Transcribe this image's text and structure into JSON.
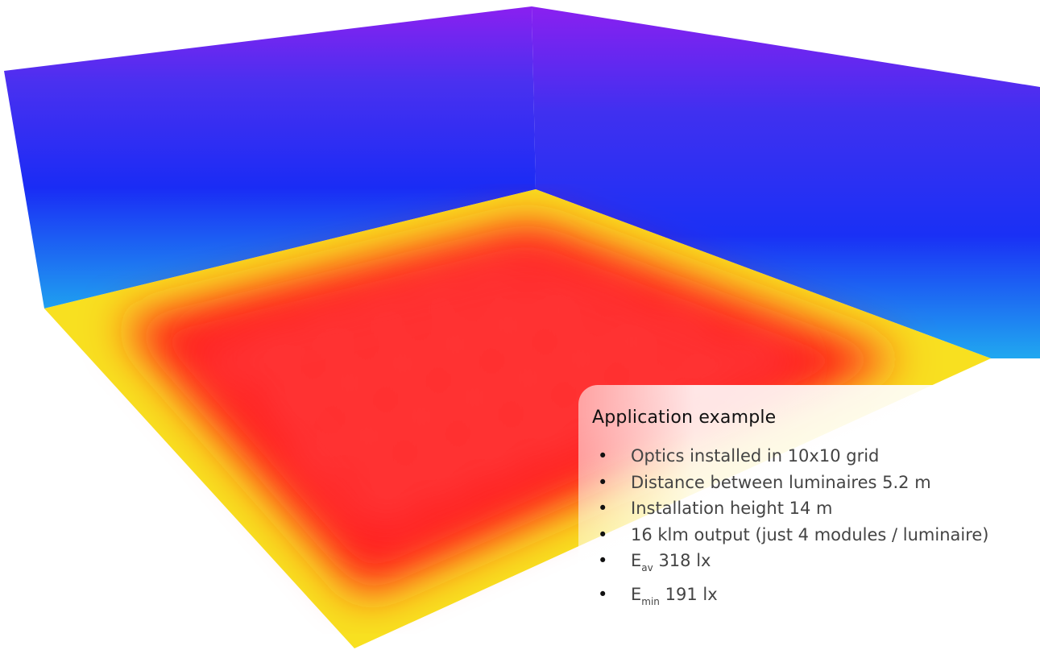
{
  "panel": {
    "title": "Application example",
    "items": [
      {
        "text": "Optics installed in 10x10 grid"
      },
      {
        "text": "Distance between luminaires 5.2 m"
      },
      {
        "text": "Installation height 14 m"
      },
      {
        "text": "16 klm output (just 4 modules / luminaire)"
      },
      {
        "symbol": "E",
        "subscript": "av",
        "text": "318 lx"
      },
      {
        "symbol": "E",
        "subscript": "min",
        "text": "191 lx"
      }
    ]
  }
}
